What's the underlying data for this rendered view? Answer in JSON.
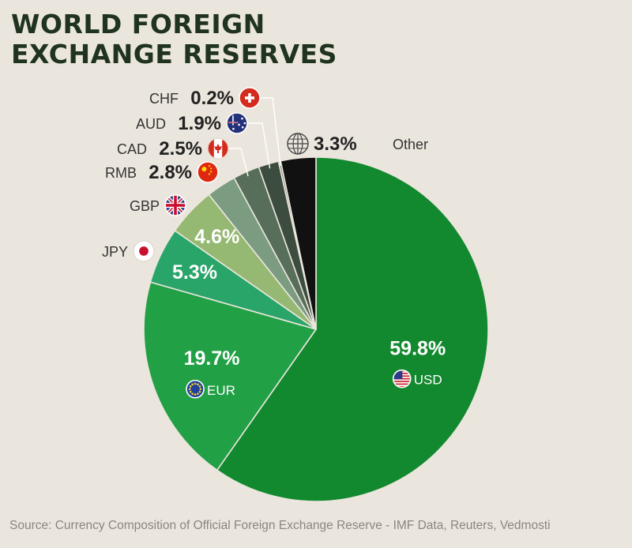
{
  "title_line1": "WORLD FOREIGN",
  "title_line2": "EXCHANGE RESERVES",
  "source": "Source: Currency Composition of Official Foreign Exchange Reserve - IMF Data, Reuters, Vedmosti",
  "chart_data": {
    "type": "pie",
    "title": "WORLD FOREIGN EXCHANGE RESERVES",
    "unit": "%",
    "slices": [
      {
        "label": "USD",
        "value": 59.8,
        "value_label": "59.8%",
        "color": "#12892f",
        "icon": "us-flag-icon"
      },
      {
        "label": "EUR",
        "value": 19.7,
        "value_label": "19.7%",
        "color": "#22a046",
        "icon": "eu-flag-icon"
      },
      {
        "label": "JPY",
        "value": 5.3,
        "value_label": "5.3%",
        "color": "#2aa56a",
        "icon": "japan-flag-icon"
      },
      {
        "label": "GBP",
        "value": 4.6,
        "value_label": "4.6%",
        "color": "#95b872",
        "icon": "uk-flag-icon"
      },
      {
        "label": "RMB",
        "value": 2.8,
        "value_label": "2.8%",
        "color": "#7b9c80",
        "icon": "china-flag-icon"
      },
      {
        "label": "CAD",
        "value": 2.5,
        "value_label": "2.5%",
        "color": "#566e5a",
        "icon": "canada-flag-icon"
      },
      {
        "label": "AUD",
        "value": 1.9,
        "value_label": "1.9%",
        "color": "#3c4d3f",
        "icon": "australia-flag-icon"
      },
      {
        "label": "CHF",
        "value": 0.2,
        "value_label": "0.2%",
        "color": "#7d7d74",
        "icon": "swiss-flag-icon"
      },
      {
        "label": "Other",
        "value": 3.3,
        "value_label": "3.3%",
        "color": "#111111",
        "icon": "globe-icon"
      }
    ]
  }
}
